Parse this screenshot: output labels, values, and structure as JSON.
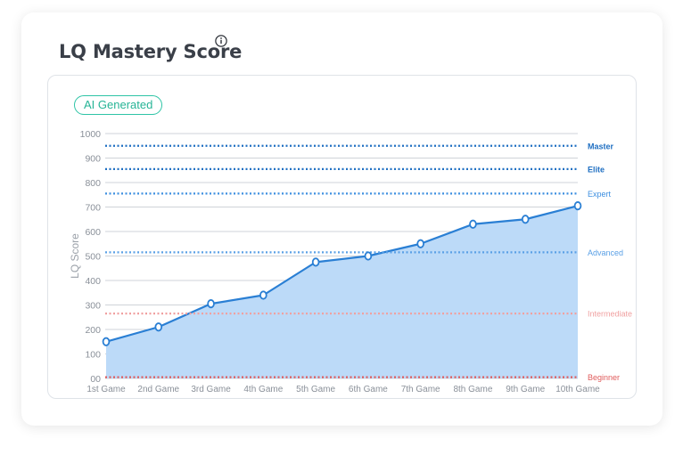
{
  "title": "LQ Mastery Score",
  "badge": "AI Generated",
  "icons": {
    "info": "info-circle-icon"
  },
  "colors": {
    "line": "#2a7fd4",
    "area": "#bcdaf8",
    "grid": "#cfd3d8",
    "master": "#1f6fc2",
    "elite": "#1f6fc2",
    "expert": "#3d8fe0",
    "advanced": "#5aa0e6",
    "intermediate": "#f0a0a0",
    "beginner": "#e05c5c",
    "badge": "#2ec4a6"
  },
  "chart_data": {
    "type": "area",
    "title": "LQ Mastery Score",
    "ylabel": "LQ Score",
    "xlabel": "",
    "ylim": [
      0,
      1000
    ],
    "y_ticks": [
      "00",
      "100",
      "200",
      "300",
      "400",
      "500",
      "600",
      "700",
      "800",
      "900",
      "1000"
    ],
    "categories": [
      "1st Game",
      "2nd Game",
      "3rd Game",
      "4th Game",
      "5th Game",
      "6th Game",
      "7th Game",
      "8th Game",
      "9th Game",
      "10th Game"
    ],
    "series": [
      {
        "values": [
          150,
          210,
          305,
          340,
          475,
          500,
          550,
          630,
          650,
          705
        ]
      }
    ],
    "levels": [
      {
        "name": "Master",
        "value": 950,
        "color": "#1f6fc2"
      },
      {
        "name": "Elite",
        "value": 855,
        "color": "#1f6fc2"
      },
      {
        "name": "Expert",
        "value": 755,
        "color": "#3d8fe0"
      },
      {
        "name": "Advanced",
        "value": 515,
        "color": "#5aa0e6"
      },
      {
        "name": "Intermediate",
        "value": 265,
        "color": "#f0a0a0"
      },
      {
        "name": "Beginner",
        "value": 5,
        "color": "#e05c5c"
      }
    ],
    "grid": true
  }
}
